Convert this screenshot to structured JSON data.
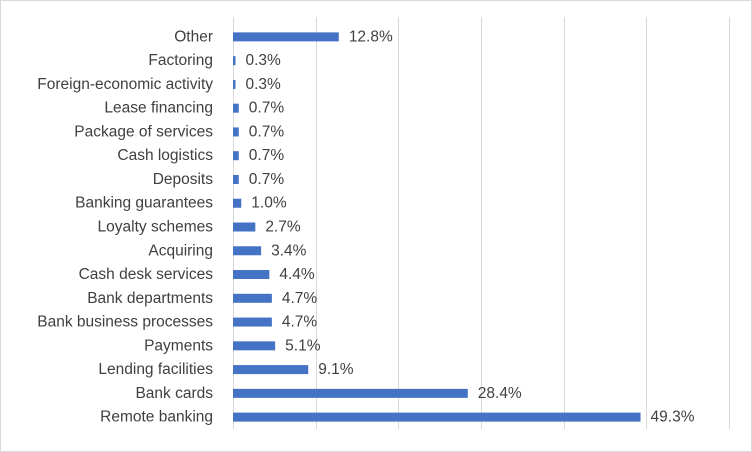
{
  "chart_data": {
    "type": "bar",
    "orientation": "horizontal",
    "categories": [
      "Other",
      "Factoring",
      "Foreign-economic activity",
      "Lease financing",
      "Package of services",
      "Cash logistics",
      "Deposits",
      "Banking guarantees",
      "Loyalty schemes",
      "Acquiring",
      "Cash desk services",
      "Bank departments",
      "Bank business processes",
      "Payments",
      "Lending facilities",
      "Bank cards",
      "Remote banking"
    ],
    "values": [
      12.8,
      0.3,
      0.3,
      0.7,
      0.7,
      0.7,
      0.7,
      1.0,
      2.7,
      3.4,
      4.4,
      4.7,
      4.7,
      5.1,
      9.1,
      28.4,
      49.3
    ],
    "data_labels": [
      "12.8%",
      "0.3%",
      "0.3%",
      "0.7%",
      "0.7%",
      "0.7%",
      "0.7%",
      "1.0%",
      "2.7%",
      "3.4%",
      "4.4%",
      "4.7%",
      "4.7%",
      "5.1%",
      "9.1%",
      "28.4%",
      "49.3%"
    ],
    "xlim": [
      0,
      60
    ],
    "x_gridlines": [
      0,
      10,
      20,
      30,
      40,
      50,
      60
    ],
    "grid": true,
    "legend": "none",
    "bar_color": "#4472c4",
    "gridline_color": "#d9d9d9",
    "text_color": "#404040"
  }
}
